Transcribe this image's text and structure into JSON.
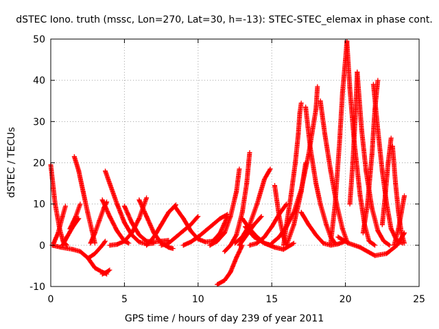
{
  "chart_data": {
    "type": "scatter",
    "title": "dSTEC Iono. truth (mssc, Lon=270, Lat=30, h=-13): STEC-STEC_elemax in phase cont.",
    "xlabel": "GPS time / hours of day 239 of year 2011",
    "ylabel": "dSTEC  / TECUs",
    "xlim": [
      0,
      25
    ],
    "ylim": [
      -10,
      50
    ],
    "xticks": [
      0,
      5,
      10,
      15,
      20,
      25
    ],
    "yticks": [
      -10,
      0,
      10,
      20,
      30,
      40,
      50
    ],
    "grid": true,
    "marker": "+",
    "colors": {
      "series": "#ff0000",
      "axes": "#000000",
      "grid": "#a0a0a0"
    },
    "series": [
      {
        "x": [
          0.0,
          0.3,
          0.6,
          0.85,
          1.1
        ],
        "y": [
          19.5,
          10.0,
          4.0,
          0.8,
          0.0
        ]
      },
      {
        "x": [
          0.2,
          0.5,
          0.8,
          1.0
        ],
        "y": [
          0.5,
          3.0,
          7.0,
          9.5
        ]
      },
      {
        "x": [
          0.1,
          0.7,
          1.5,
          2.0,
          2.5,
          3.0,
          3.5,
          3.8
        ],
        "y": [
          0.0,
          -0.5,
          -1.0,
          -1.5,
          -3.0,
          -5.5,
          -6.5,
          -7.0
        ]
      },
      {
        "x": [
          3.5,
          3.8,
          4.0
        ],
        "y": [
          -7.0,
          -6.5,
          -6.0
        ]
      },
      {
        "x": [
          2.6,
          3.0,
          3.5,
          3.7
        ],
        "y": [
          -3.0,
          -2.0,
          0.0,
          1.0
        ]
      },
      {
        "x": [
          0.8,
          1.1,
          1.5,
          1.9
        ],
        "y": [
          0.0,
          2.0,
          4.5,
          6.5
        ]
      },
      {
        "x": [
          1.6,
          1.9,
          2.2,
          2.5,
          2.8,
          3.0
        ],
        "y": [
          21.5,
          18.0,
          13.0,
          8.0,
          3.5,
          0.5
        ]
      },
      {
        "x": [
          1.3,
          1.7,
          2.0
        ],
        "y": [
          4.0,
          7.0,
          10.0
        ]
      },
      {
        "x": [
          2.7,
          3.0,
          3.3,
          3.6,
          3.8
        ],
        "y": [
          0.5,
          3.0,
          6.0,
          9.0,
          10.5
        ]
      },
      {
        "x": [
          3.7,
          4.0,
          4.5,
          5.0,
          5.5,
          6.0,
          6.5,
          7.0
        ],
        "y": [
          18.0,
          15.0,
          10.0,
          5.5,
          2.5,
          0.8,
          0.3,
          0.5
        ]
      },
      {
        "x": [
          3.5,
          4.0,
          4.5,
          5.0,
          5.3
        ],
        "y": [
          11.0,
          7.0,
          3.5,
          1.0,
          0.5
        ]
      },
      {
        "x": [
          5.0,
          5.5,
          6.0,
          6.5,
          7.0,
          7.5,
          8.0
        ],
        "y": [
          9.5,
          5.5,
          2.5,
          1.0,
          0.8,
          1.0,
          1.2
        ]
      },
      {
        "x": [
          4.0,
          4.5,
          5.0,
          5.5,
          6.0,
          6.5
        ],
        "y": [
          0.0,
          0.2,
          1.0,
          3.0,
          6.5,
          11.5
        ]
      },
      {
        "x": [
          6.0,
          6.5,
          7.0,
          7.5,
          8.0,
          8.3
        ],
        "y": [
          11.0,
          7.0,
          3.0,
          0.5,
          -0.5,
          -0.8
        ]
      },
      {
        "x": [
          6.5,
          7.0,
          7.5,
          8.0,
          8.5
        ],
        "y": [
          0.0,
          2.0,
          5.0,
          8.0,
          9.8
        ]
      },
      {
        "x": [
          8.4,
          9.0,
          9.5,
          10.0,
          10.5,
          11.0,
          11.5,
          12.0
        ],
        "y": [
          9.5,
          6.5,
          3.5,
          1.5,
          0.8,
          1.0,
          3.0,
          7.0
        ]
      },
      {
        "x": [
          7.5,
          8.0,
          8.5,
          9.0,
          9.5,
          10.0
        ],
        "y": [
          0.0,
          0.5,
          2.0,
          3.5,
          5.0,
          7.0
        ]
      },
      {
        "x": [
          9.0,
          9.5,
          10.0,
          10.5,
          11.0,
          11.5,
          12.0
        ],
        "y": [
          0.0,
          0.8,
          2.0,
          3.5,
          5.0,
          6.5,
          7.5
        ]
      },
      {
        "x": [
          10.8,
          11.3,
          11.8,
          12.2,
          12.6,
          12.8
        ],
        "y": [
          0.0,
          1.0,
          3.0,
          7.0,
          13.0,
          18.5
        ]
      },
      {
        "x": [
          11.3,
          11.8,
          12.2,
          12.6,
          13.0
        ],
        "y": [
          -9.5,
          -8.5,
          -6.5,
          -3.0,
          0.0
        ]
      },
      {
        "x": [
          11.8,
          12.2,
          12.6,
          13.0,
          13.3,
          13.5
        ],
        "y": [
          -1.5,
          0.0,
          2.5,
          8.0,
          15.0,
          22.5
        ]
      },
      {
        "x": [
          12.5,
          13.0,
          13.5,
          14.0,
          14.5,
          14.9
        ],
        "y": [
          0.5,
          2.0,
          5.0,
          10.0,
          16.0,
          18.5
        ]
      },
      {
        "x": [
          13.0,
          13.5,
          14.0,
          14.5,
          15.0
        ],
        "y": [
          6.5,
          4.0,
          2.0,
          0.5,
          0.0
        ]
      },
      {
        "x": [
          13.5,
          14.0,
          14.5,
          15.0,
          15.5,
          16.0
        ],
        "y": [
          0.0,
          0.5,
          2.0,
          4.5,
          7.5,
          10.0
        ]
      },
      {
        "x": [
          15.2,
          15.5,
          15.8,
          16.0
        ],
        "y": [
          14.5,
          7.0,
          2.0,
          0.0
        ]
      },
      {
        "x": [
          15.8,
          16.0,
          16.3,
          16.6,
          16.8,
          16.9,
          17.0
        ],
        "y": [
          0.0,
          5.0,
          12.0,
          20.0,
          27.0,
          32.0,
          34.5
        ]
      },
      {
        "x": [
          15.0,
          15.5,
          16.0,
          16.5,
          17.0,
          17.5,
          18.0,
          18.1
        ],
        "y": [
          0.5,
          2.0,
          4.5,
          8.0,
          13.5,
          22.0,
          33.0,
          38.5
        ]
      },
      {
        "x": [
          16.0,
          16.5,
          17.0,
          17.3
        ],
        "y": [
          0.0,
          5.0,
          13.0,
          20.0
        ]
      },
      {
        "x": [
          17.3,
          17.6,
          18.0,
          18.3,
          18.7,
          19.0,
          19.3
        ],
        "y": [
          33.5,
          24.0,
          15.0,
          10.0,
          5.0,
          2.0,
          0.5
        ]
      },
      {
        "x": [
          17.0,
          17.5,
          18.0,
          18.5,
          19.0,
          19.5,
          20.0
        ],
        "y": [
          8.0,
          5.0,
          2.5,
          0.5,
          0.0,
          0.3,
          1.0
        ]
      },
      {
        "x": [
          18.3,
          18.6,
          19.0,
          19.4,
          19.8,
          20.1
        ],
        "y": [
          35.0,
          27.0,
          18.0,
          10.0,
          4.0,
          1.0
        ]
      },
      {
        "x": [
          19.0,
          19.3,
          19.6,
          19.8,
          20.0,
          20.1
        ],
        "y": [
          0.5,
          10.0,
          25.0,
          37.0,
          45.0,
          49.5
        ]
      },
      {
        "x": [
          20.1,
          20.3,
          20.6,
          21.0,
          21.3,
          21.6,
          22.0
        ],
        "y": [
          49.5,
          38.0,
          25.0,
          12.0,
          5.0,
          1.0,
          0.0
        ]
      },
      {
        "x": [
          20.3,
          20.5,
          20.7,
          20.8
        ],
        "y": [
          10.0,
          20.0,
          33.0,
          42.0
        ]
      },
      {
        "x": [
          20.8,
          21.1,
          21.4,
          21.8,
          22.2,
          22.6,
          23.0
        ],
        "y": [
          42.0,
          28.0,
          18.0,
          9.0,
          3.5,
          1.0,
          0.0
        ]
      },
      {
        "x": [
          21.2,
          21.5,
          21.8,
          22.0,
          22.2
        ],
        "y": [
          3.0,
          10.0,
          22.0,
          33.0,
          40.0
        ]
      },
      {
        "x": [
          21.9,
          22.2,
          22.5,
          22.8,
          23.1,
          23.5,
          23.9
        ],
        "y": [
          39.0,
          28.0,
          18.0,
          10.0,
          4.0,
          1.0,
          0.5
        ]
      },
      {
        "x": [
          22.5,
          22.7,
          22.9,
          23.1
        ],
        "y": [
          5.0,
          12.0,
          20.0,
          26.0
        ]
      },
      {
        "x": [
          23.2,
          23.4,
          23.6,
          23.8,
          24.0
        ],
        "y": [
          24.0,
          15.0,
          8.0,
          3.0,
          0.5
        ]
      },
      {
        "x": [
          23.3,
          23.6,
          23.8,
          24.0
        ],
        "y": [
          0.0,
          4.0,
          8.0,
          12.0
        ]
      },
      {
        "x": [
          19.5,
          20.2,
          21.0,
          22.0,
          22.8,
          23.5,
          24.0
        ],
        "y": [
          2.0,
          0.5,
          -0.5,
          -2.5,
          -2.0,
          0.0,
          3.0
        ]
      },
      {
        "x": [
          13.2,
          13.8,
          14.5,
          15.2,
          15.8,
          16.5
        ],
        "y": [
          4.5,
          2.0,
          0.5,
          -0.5,
          -1.0,
          0.5
        ]
      },
      {
        "x": [
          12.8,
          13.3,
          13.8,
          14.3
        ],
        "y": [
          0.0,
          2.5,
          5.0,
          7.0
        ]
      }
    ]
  }
}
